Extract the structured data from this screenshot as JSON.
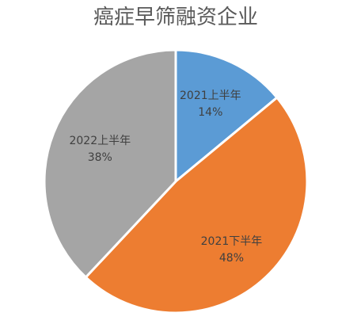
{
  "chart_data": {
    "type": "pie",
    "title": "癌症早筛融资企业",
    "slices": [
      {
        "label": "2021上半年",
        "value": 14,
        "display": "14%",
        "color": "#5B9BD5"
      },
      {
        "label": "2021下半年",
        "value": 48,
        "display": "48%",
        "color": "#ED7D31"
      },
      {
        "label": "2022上半年",
        "value": 38,
        "display": "38%",
        "color": "#A5A5A5"
      }
    ],
    "start_angle": "12 o'clock",
    "direction": "clockwise",
    "data_labels": "category and percentage inside slices",
    "legend": "none"
  }
}
